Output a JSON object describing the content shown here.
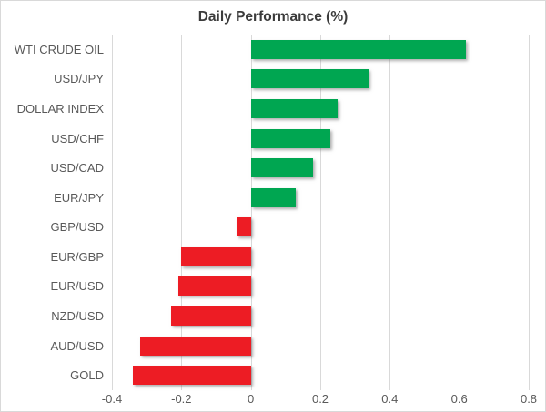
{
  "chart_data": {
    "type": "bar",
    "orientation": "horizontal",
    "title": "Daily Performance (%)",
    "categories": [
      "WTI CRUDE OIL",
      "USD/JPY",
      "DOLLAR INDEX",
      "USD/CHF",
      "USD/CAD",
      "EUR/JPY",
      "GBP/USD",
      "EUR/GBP",
      "EUR/USD",
      "NZD/USD",
      "AUD/USD",
      "GOLD"
    ],
    "values": [
      0.62,
      0.34,
      0.25,
      0.23,
      0.18,
      0.13,
      -0.04,
      -0.2,
      -0.21,
      -0.23,
      -0.32,
      -0.34
    ],
    "xlabel": "",
    "ylabel": "",
    "xlim": [
      -0.4,
      0.8
    ],
    "xtick_values": [
      -0.4,
      -0.2,
      0,
      0.2,
      0.4,
      0.6,
      0.8
    ],
    "xtick_labels": [
      "-0.4",
      "-0.2",
      "0",
      "0.2",
      "0.4",
      "0.6",
      "0.8"
    ],
    "grid": true,
    "legend": false,
    "colors": {
      "positive_bar": "#00A651",
      "negative_bar": "#ED1C24",
      "gridline": "#D9D9D9",
      "title_text": "#3B3B3B",
      "axis_text": "#595959"
    }
  }
}
